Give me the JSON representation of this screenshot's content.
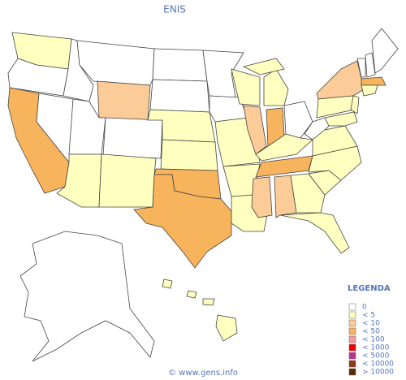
{
  "title": "ENIS",
  "legend": {
    "title": "LEGENDA",
    "items": [
      {
        "label": "0",
        "color": "#ffffff"
      },
      {
        "label": "< 5",
        "color": "#ffffc0"
      },
      {
        "label": "< 10",
        "color": "#fbcc98"
      },
      {
        "label": "< 50",
        "color": "#f8b45c"
      },
      {
        "label": "< 100",
        "color": "#f49aa0"
      },
      {
        "label": "< 1000",
        "color": "#ee0000"
      },
      {
        "label": "< 5000",
        "color": "#c03090"
      },
      {
        "label": "< 10000",
        "color": "#8b3a1a"
      },
      {
        "label": "> 10000",
        "color": "#5a2a00"
      }
    ]
  },
  "regions": [
    1,
    0,
    3,
    0,
    0,
    0,
    2,
    0,
    0,
    1,
    1,
    0,
    0,
    1,
    1,
    3,
    3,
    0,
    0,
    1,
    1,
    1,
    1,
    2,
    1,
    3,
    0,
    1,
    3,
    2,
    2,
    1,
    1,
    1,
    1,
    0,
    1,
    2,
    1,
    1,
    1,
    0,
    0,
    3,
    1,
    0,
    1,
    1,
    1,
    1,
    1
  ],
  "footer": "© www.gens.info"
}
